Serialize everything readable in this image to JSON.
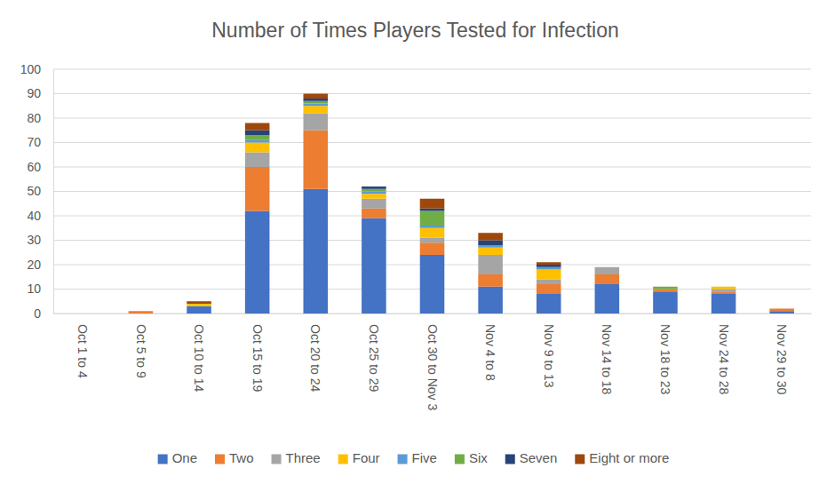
{
  "chart_data": {
    "type": "bar",
    "title": "Number of Times Players Tested for Infection",
    "categories": [
      "Oct 1 to 4",
      "Oct 5 to 9",
      "Oct 10 to 14",
      "Oct 15 to 19",
      "Oct 20 to 24",
      "Oct 25 to 29",
      "Oct 30 to Nov 3",
      "Nov 4 to 8",
      "Nov 9 to 13",
      "Nov 14 to 18",
      "Nov 18 to 23",
      "Nov 24 to 28",
      "Nov 29 to 30"
    ],
    "series": [
      {
        "name": "One",
        "color": "#4472c4",
        "values": [
          0,
          0,
          3,
          42,
          51,
          39,
          24,
          11,
          8,
          12,
          9,
          8,
          1
        ]
      },
      {
        "name": "Two",
        "color": "#ed7d31",
        "values": [
          0,
          1,
          0,
          18,
          24,
          4,
          5,
          5,
          4,
          4,
          1,
          1,
          1
        ]
      },
      {
        "name": "Three",
        "color": "#a5a5a5",
        "values": [
          0,
          0,
          0,
          6,
          7,
          4,
          2,
          8,
          2,
          3,
          0,
          1,
          0
        ]
      },
      {
        "name": "Four",
        "color": "#ffc000",
        "values": [
          0,
          0,
          1,
          4,
          3,
          2,
          4,
          3,
          4,
          0,
          0,
          1,
          0
        ]
      },
      {
        "name": "Five",
        "color": "#5b9bd5",
        "values": [
          0,
          0,
          0,
          1,
          1,
          1,
          1,
          1,
          1,
          0,
          0,
          0,
          0
        ]
      },
      {
        "name": "Six",
        "color": "#70ad47",
        "values": [
          0,
          0,
          0,
          2,
          1,
          1,
          6,
          0,
          0,
          0,
          1,
          0,
          0
        ]
      },
      {
        "name": "Seven",
        "color": "#264478",
        "values": [
          0,
          0,
          0,
          2,
          1,
          1,
          1,
          2,
          1,
          0,
          0,
          0,
          0
        ]
      },
      {
        "name": "Eight or more",
        "color": "#9e480e",
        "values": [
          0,
          0,
          1,
          3,
          2,
          0,
          4,
          3,
          1,
          0,
          0,
          0,
          0
        ]
      }
    ],
    "ylim": [
      0,
      100
    ],
    "yticks": [
      0,
      10,
      20,
      30,
      40,
      50,
      60,
      70,
      80,
      90,
      100
    ],
    "grid": true,
    "stacked": true,
    "legend": "bottom"
  }
}
